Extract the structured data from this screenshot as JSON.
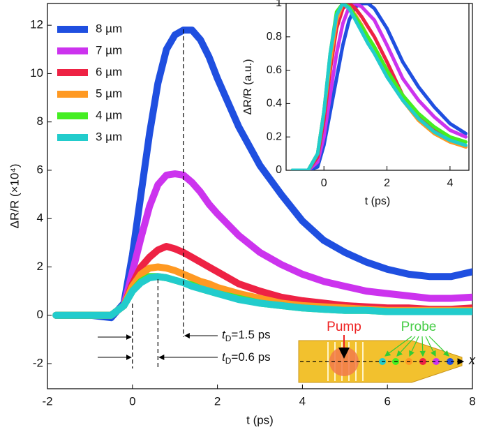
{
  "chart_data": [
    {
      "type": "line",
      "x_label": "t (ps)",
      "y_label": "ΔR/R (×10⁴)",
      "xlim": [
        -2,
        8
      ],
      "ylim": [
        -3.04,
        12.9
      ],
      "xticks": [
        -2,
        0,
        2,
        4,
        6,
        8
      ],
      "yticks": [
        -2,
        0,
        2,
        4,
        6,
        8,
        10,
        12
      ],
      "legend": "top-left",
      "x": [
        -1.8,
        -1.5,
        -1,
        -0.5,
        -0.2,
        0,
        0.2,
        0.4,
        0.6,
        0.8,
        1,
        1.2,
        1.4,
        1.6,
        1.8,
        2,
        2.5,
        3,
        3.5,
        4,
        4.5,
        5,
        5.5,
        6,
        6.5,
        7,
        7.5,
        8
      ],
      "series": [
        {
          "name": "8 µm",
          "color": "#1f4fe0",
          "values": [
            0,
            0,
            0,
            -0.1,
            0.5,
            2.5,
            5,
            7.5,
            9.6,
            11,
            11.6,
            11.8,
            11.8,
            11.4,
            10.7,
            9.8,
            7.8,
            6.2,
            5,
            3.9,
            3.1,
            2.6,
            2.2,
            1.9,
            1.7,
            1.6,
            1.6,
            1.8
          ]
        },
        {
          "name": "7 µm",
          "color": "#cc33ee",
          "values": [
            0,
            0,
            0,
            0,
            0.4,
            1.8,
            3.2,
            4.5,
            5.4,
            5.8,
            5.85,
            5.8,
            5.5,
            5.1,
            4.6,
            4.2,
            3.3,
            2.6,
            2.1,
            1.7,
            1.4,
            1.2,
            1,
            0.9,
            0.8,
            0.7,
            0.7,
            0.75
          ]
        },
        {
          "name": "6 µm",
          "color": "#ee2244",
          "values": [
            0,
            0,
            0,
            0,
            0.4,
            1.3,
            2,
            2.4,
            2.7,
            2.85,
            2.75,
            2.6,
            2.4,
            2.2,
            2,
            1.8,
            1.3,
            1,
            0.75,
            0.6,
            0.5,
            0.4,
            0.35,
            0.3,
            0.3,
            0.25,
            0.25,
            0.3
          ]
        },
        {
          "name": "5 µm",
          "color": "#ff9922",
          "values": [
            0,
            0,
            0,
            0,
            0.4,
            1.2,
            1.7,
            1.95,
            2,
            1.95,
            1.85,
            1.7,
            1.55,
            1.4,
            1.3,
            1.15,
            0.9,
            0.7,
            0.5,
            0.4,
            0.35,
            0.3,
            0.25,
            0.2,
            0.2,
            0.2,
            0.2,
            0.2
          ]
        },
        {
          "name": "4 µm",
          "color": "#44ee22",
          "values": [
            0,
            0,
            0,
            0,
            0.4,
            1,
            1.4,
            1.6,
            1.6,
            1.55,
            1.45,
            1.35,
            1.25,
            1.1,
            1,
            0.9,
            0.7,
            0.5,
            0.4,
            0.3,
            0.25,
            0.2,
            0.2,
            0.15,
            0.15,
            0.15,
            0.15,
            0.15
          ]
        },
        {
          "name": "3 µm",
          "color": "#22cccc",
          "values": [
            0,
            0,
            0,
            0,
            0.4,
            1,
            1.35,
            1.55,
            1.6,
            1.55,
            1.45,
            1.35,
            1.2,
            1.1,
            1,
            0.9,
            0.65,
            0.5,
            0.4,
            0.3,
            0.25,
            0.2,
            0.2,
            0.15,
            0.15,
            0.15,
            0.15,
            0.15
          ]
        }
      ],
      "annotations": [
        {
          "var": "t",
          "sub": "D",
          "text": "=1.5 ps"
        },
        {
          "var": "t",
          "sub": "D",
          "text": "=0.6 ps"
        }
      ]
    },
    {
      "type": "line",
      "x_label": "t (ps)",
      "y_label": "ΔR/R (a.u.)",
      "xlim": [
        -1.2,
        4.6
      ],
      "ylim": [
        0,
        1
      ],
      "xticks": [
        0,
        2,
        4
      ],
      "yticks": [
        0,
        0.2,
        0.4,
        0.6,
        0.8,
        1
      ],
      "x": [
        -1,
        -0.5,
        -0.2,
        0,
        0.2,
        0.4,
        0.6,
        0.8,
        1,
        1.2,
        1.4,
        1.6,
        2,
        2.5,
        3,
        3.5,
        4,
        4.5
      ],
      "series": [
        {
          "color": "#1f4fe0",
          "values": [
            0,
            0,
            0.02,
            0.15,
            0.35,
            0.55,
            0.75,
            0.9,
            0.98,
            1,
            1,
            0.97,
            0.85,
            0.65,
            0.5,
            0.38,
            0.28,
            0.22
          ]
        },
        {
          "color": "#cc33ee",
          "values": [
            0,
            0,
            0.05,
            0.2,
            0.45,
            0.7,
            0.88,
            0.98,
            1,
            0.98,
            0.94,
            0.9,
            0.75,
            0.55,
            0.42,
            0.32,
            0.24,
            0.2
          ]
        },
        {
          "color": "#ee2244",
          "values": [
            0,
            0,
            0.08,
            0.3,
            0.6,
            0.85,
            0.97,
            1,
            0.97,
            0.92,
            0.86,
            0.8,
            0.65,
            0.45,
            0.33,
            0.25,
            0.18,
            0.14
          ]
        },
        {
          "color": "#ff9922",
          "values": [
            0,
            0,
            0.1,
            0.35,
            0.65,
            0.9,
            1,
            0.98,
            0.93,
            0.87,
            0.8,
            0.74,
            0.6,
            0.42,
            0.3,
            0.22,
            0.17,
            0.14
          ]
        },
        {
          "color": "#44ee22",
          "values": [
            0,
            0,
            0.1,
            0.35,
            0.7,
            0.95,
            1,
            0.98,
            0.92,
            0.86,
            0.8,
            0.74,
            0.6,
            0.45,
            0.34,
            0.26,
            0.2,
            0.17
          ]
        },
        {
          "color": "#22cccc",
          "values": [
            0,
            0,
            0.1,
            0.35,
            0.7,
            0.93,
            1,
            0.97,
            0.9,
            0.83,
            0.76,
            0.7,
            0.56,
            0.42,
            0.31,
            0.23,
            0.18,
            0.15
          ]
        }
      ]
    }
  ],
  "diagram": {
    "pump": "Pump",
    "probe": "Probe",
    "axis": "x"
  }
}
